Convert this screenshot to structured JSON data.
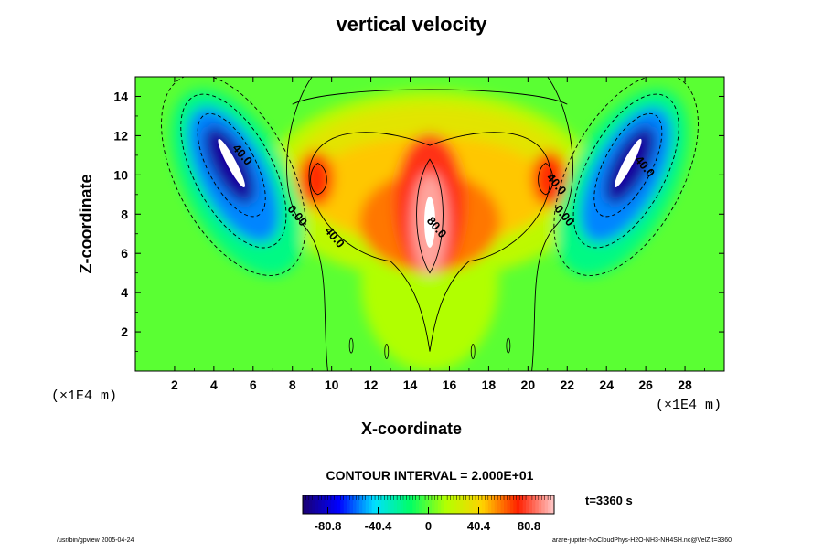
{
  "title": "vertical velocity",
  "footer": {
    "left": "/usr/bin/gpview 2005-04-24",
    "right": "arare-jupiter-NoCloudPhys-H2O-NH3-NH4SH.nc@VelZ,t=3360"
  },
  "colorbar": {
    "interval_text": "CONTOUR INTERVAL = 2.000E+01",
    "time_text": "t=3360 s",
    "tick_labels": [
      "-80.8",
      "-40.4",
      "0",
      "40.4",
      "80.8"
    ],
    "tick_values": [
      -80.8,
      -40.4,
      0,
      40.4,
      80.8
    ],
    "range": [
      -101,
      101
    ],
    "colors": [
      "#1a0070",
      "#0000ff",
      "#00e0ff",
      "#00ff66",
      "#b4ff00",
      "#ffd200",
      "#ff2000",
      "#ffc8c8"
    ]
  },
  "chart_data": {
    "type": "heatmap",
    "title": "vertical velocity",
    "xlabel": "X-coordinate",
    "ylabel": "Z-coordinate",
    "x_unit": "(×1E4 m)",
    "y_unit": "(×1E4 m)",
    "xlim": [
      0,
      30
    ],
    "ylim": [
      0,
      15
    ],
    "x_ticks": [
      2,
      4,
      6,
      8,
      10,
      12,
      14,
      16,
      18,
      20,
      22,
      24,
      26,
      28
    ],
    "y_ticks": [
      2,
      4,
      6,
      8,
      10,
      12,
      14
    ],
    "contour_interval": 20,
    "contour_labels": [
      {
        "text": "40.0",
        "x": 5.3,
        "z": 10.9
      },
      {
        "text": "0.00",
        "x": 8.1,
        "z": 7.8
      },
      {
        "text": "40.0",
        "x": 10.0,
        "z": 6.7
      },
      {
        "text": "80.0",
        "x": 15.2,
        "z": 7.2
      },
      {
        "text": "40.0",
        "x": 21.3,
        "z": 9.4
      },
      {
        "text": "0.00",
        "x": 21.7,
        "z": 7.8
      },
      {
        "text": "40.0",
        "x": 25.8,
        "z": 10.3
      }
    ],
    "features": [
      {
        "kind": "updraft core",
        "x": 15.0,
        "z": 7.5,
        "max": 100
      },
      {
        "kind": "downdraft",
        "x": 4.8,
        "z": 10.5,
        "min": -100
      },
      {
        "kind": "downdraft",
        "x": 25.2,
        "z": 10.5,
        "min": -100
      }
    ]
  },
  "axes": {
    "x_unit_left": "(×1E4 m)",
    "x_unit_right": "(×1E4 m)"
  }
}
